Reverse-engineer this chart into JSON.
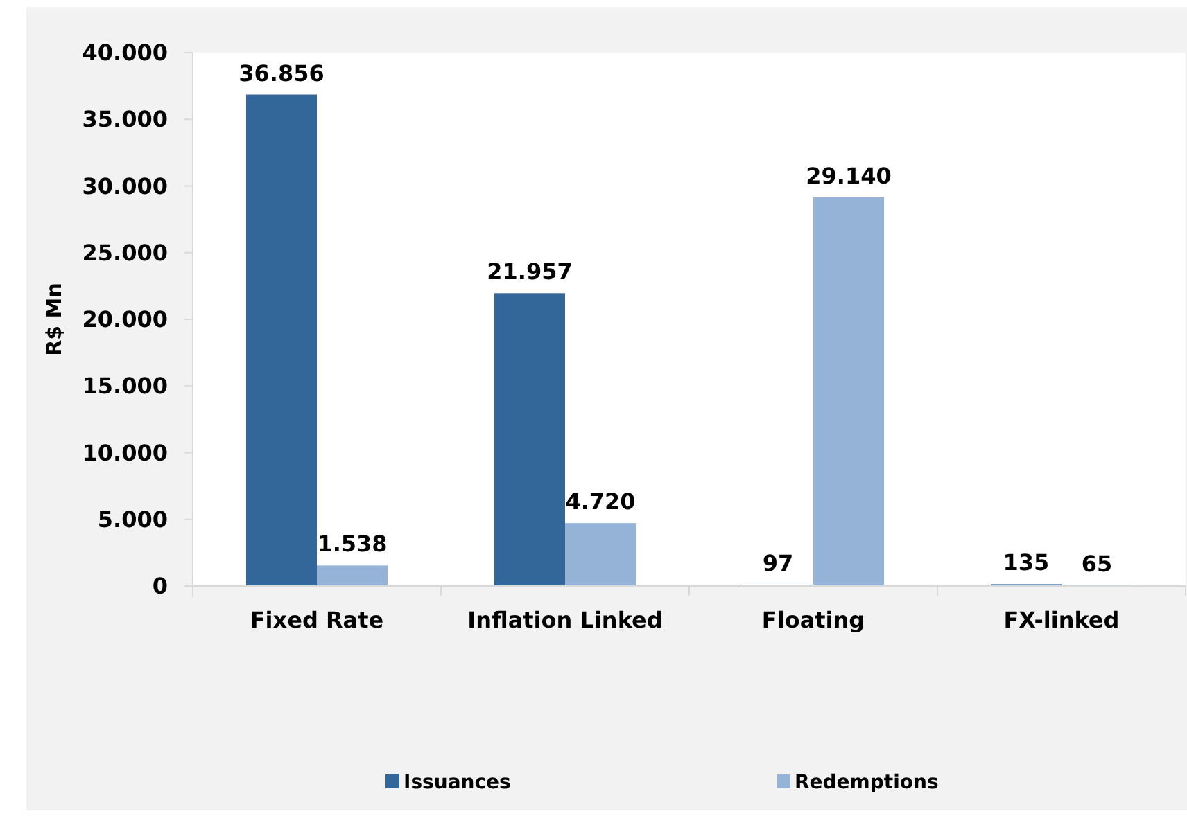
{
  "chart_data": {
    "type": "bar",
    "ylabel": "R$ Mn",
    "categories": [
      "Fixed Rate",
      "Inflation Linked",
      "Floating",
      "FX-linked"
    ],
    "series": [
      {
        "name": "Issuances",
        "color": "#336699",
        "values": [
          36856,
          21957,
          97,
          135
        ],
        "value_labels": [
          "36.856",
          "21.957",
          "97",
          "135"
        ]
      },
      {
        "name": "Redemptions",
        "color": "#95b3d7",
        "values": [
          1538,
          4720,
          29140,
          65
        ],
        "value_labels": [
          "1.538",
          "4.720",
          "29.140",
          "65"
        ]
      }
    ],
    "ylim": [
      0,
      40000
    ],
    "yticks": [
      0,
      {
        "value": 5000,
        "label": "5.000"
      },
      {
        "value": 10000,
        "label": "10.000"
      },
      {
        "value": 15000,
        "label": "15.000"
      },
      {
        "value": 20000,
        "label": "20.000"
      },
      {
        "value": 25000,
        "label": "25.000"
      },
      {
        "value": 30000,
        "label": "30.000"
      },
      {
        "value": 35000,
        "label": "35.000"
      },
      {
        "value": 40000,
        "label": "40.000"
      }
    ],
    "legend": "bottom"
  }
}
